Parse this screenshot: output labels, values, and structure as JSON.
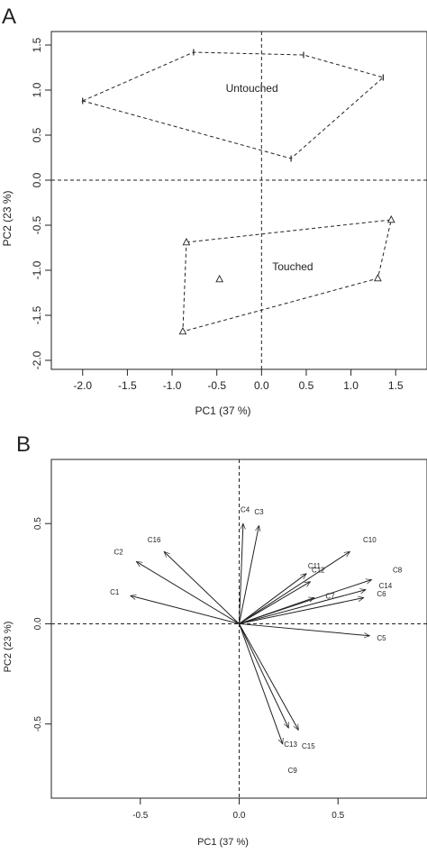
{
  "chart_data": [
    {
      "panel_label": "A",
      "type": "scatter",
      "xlabel": "PC1 (37 %)",
      "ylabel": "PC2 (23 %)",
      "xlim": [
        -2.35,
        1.85
      ],
      "ylim": [
        -2.1,
        1.65
      ],
      "x_ticks": [
        "-2.0",
        "-1.5",
        "-1.0",
        "-0.5",
        "0.0",
        "0.5",
        "1.0",
        "1.5"
      ],
      "x_tick_values": [
        -2.0,
        -1.5,
        -1.0,
        -0.5,
        0.0,
        0.5,
        1.0,
        1.5
      ],
      "y_ticks": [
        "-2.0",
        "-1.5",
        "-1.0",
        "-0.5",
        "0.0",
        "0.5",
        "1.0",
        "1.5"
      ],
      "y_tick_values": [
        -2.0,
        -1.5,
        -1.0,
        -0.5,
        0.0,
        0.5,
        1.0,
        1.5
      ],
      "reference_lines": {
        "x": 0,
        "y": 0,
        "style": "dashed"
      },
      "grid": false,
      "groups": [
        {
          "name": "Untouched",
          "label_at": [
            -0.4,
            0.98
          ],
          "marker": "plus",
          "points": [
            [
              -2.0,
              0.88
            ],
            [
              -0.76,
              1.42
            ],
            [
              0.47,
              1.39
            ],
            [
              1.36,
              1.14
            ],
            [
              0.33,
              0.24
            ]
          ],
          "hull": [
            [
              -2.0,
              0.88
            ],
            [
              -0.76,
              1.42
            ],
            [
              0.47,
              1.39
            ],
            [
              1.36,
              1.14
            ],
            [
              0.33,
              0.24
            ]
          ]
        },
        {
          "name": "Touched",
          "label_at": [
            0.12,
            -1.0
          ],
          "marker": "triangle",
          "points": [
            [
              -0.84,
              -0.69
            ],
            [
              -0.47,
              -1.1
            ],
            [
              -0.88,
              -1.68
            ],
            [
              1.3,
              -1.09
            ],
            [
              1.45,
              -0.44
            ]
          ],
          "hull": [
            [
              -0.84,
              -0.69
            ],
            [
              1.45,
              -0.44
            ],
            [
              1.3,
              -1.09
            ],
            [
              -0.88,
              -1.68
            ]
          ]
        }
      ]
    },
    {
      "panel_label": "B",
      "type": "scatter",
      "subtype": "loading-arrows",
      "xlabel": "PC1 (37 %)",
      "ylabel": "PC2 (23 %)",
      "xlim": [
        -0.95,
        0.95
      ],
      "ylim": [
        -0.87,
        0.82
      ],
      "x_ticks": [
        "-0.5",
        "0.0",
        "0.5"
      ],
      "x_tick_values": [
        -0.5,
        0.0,
        0.5
      ],
      "y_ticks": [
        "-0.5",
        "0.0",
        "0.5"
      ],
      "y_tick_values": [
        -0.5,
        0.0,
        0.5
      ],
      "reference_lines": {
        "x": 0,
        "y": 0,
        "style": "dashed"
      },
      "grid": false,
      "arrows": [
        {
          "name": "C1",
          "x": -0.55,
          "y": 0.14,
          "label_x": -0.63,
          "label_y": 0.16
        },
        {
          "name": "C2",
          "x": -0.52,
          "y": 0.31,
          "label_x": -0.61,
          "label_y": 0.36
        },
        {
          "name": "C16",
          "x": -0.38,
          "y": 0.36,
          "label_x": -0.43,
          "label_y": 0.42
        },
        {
          "name": "C4",
          "x": 0.02,
          "y": 0.5,
          "label_x": 0.03,
          "label_y": 0.57
        },
        {
          "name": "C3",
          "x": 0.1,
          "y": 0.49,
          "label_x": 0.1,
          "label_y": 0.56
        },
        {
          "name": "C10",
          "x": 0.56,
          "y": 0.36,
          "label_x": 0.66,
          "label_y": 0.42
        },
        {
          "name": "C11",
          "x": 0.34,
          "y": 0.25,
          "label_x": 0.38,
          "label_y": 0.29
        },
        {
          "name": "C12",
          "x": 0.36,
          "y": 0.21,
          "label_x": 0.4,
          "label_y": 0.27
        },
        {
          "name": "C8",
          "x": 0.67,
          "y": 0.22,
          "label_x": 0.8,
          "label_y": 0.27
        },
        {
          "name": "C14",
          "x": 0.64,
          "y": 0.17,
          "label_x": 0.74,
          "label_y": 0.19
        },
        {
          "name": "C6",
          "x": 0.63,
          "y": 0.13,
          "label_x": 0.72,
          "label_y": 0.15
        },
        {
          "name": "C7",
          "x": 0.38,
          "y": 0.13,
          "label_x": 0.46,
          "label_y": 0.14
        },
        {
          "name": "C5",
          "x": 0.66,
          "y": -0.06,
          "label_x": 0.72,
          "label_y": -0.07
        },
        {
          "name": "C13",
          "x": 0.22,
          "y": -0.6,
          "label_x": 0.26,
          "label_y": -0.6
        },
        {
          "name": "C15",
          "x": 0.3,
          "y": -0.53,
          "label_x": 0.35,
          "label_y": -0.61
        },
        {
          "name": "C9",
          "x": 0.25,
          "y": -0.52,
          "label_x": 0.27,
          "label_y": -0.73
        }
      ]
    }
  ]
}
